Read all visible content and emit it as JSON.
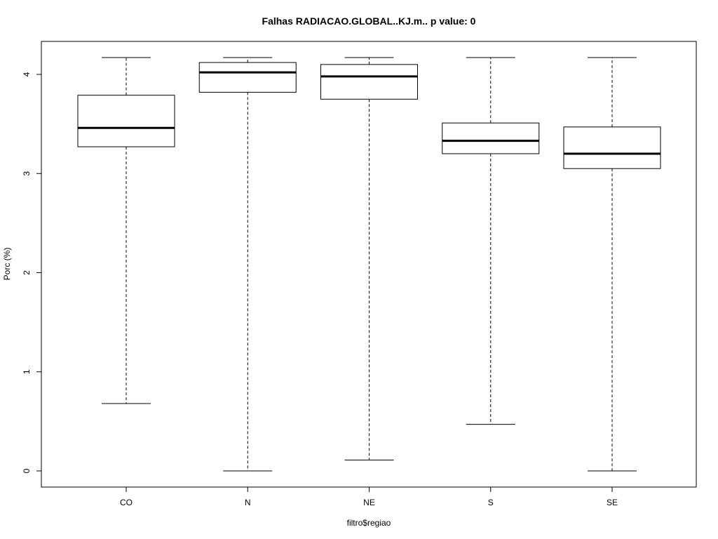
{
  "chart_data": {
    "type": "boxplot",
    "title": "Falhas RADIACAO.GLOBAL..KJ.m.. p value: 0",
    "xlabel": "filtro$regiao",
    "ylabel": "Porc (%)",
    "categories": [
      "CO",
      "N",
      "NE",
      "S",
      "SE"
    ],
    "yticks": [
      0,
      1,
      2,
      3,
      4
    ],
    "ylim": [
      -0.16,
      4.34
    ],
    "grid": false,
    "boxes": [
      {
        "category": "CO",
        "whisker_low": 0.68,
        "q1": 3.27,
        "median": 3.46,
        "q3": 3.79,
        "whisker_high": 4.17
      },
      {
        "category": "N",
        "whisker_low": 0.0,
        "q1": 3.82,
        "median": 4.02,
        "q3": 4.12,
        "whisker_high": 4.17
      },
      {
        "category": "NE",
        "whisker_low": 0.11,
        "q1": 3.75,
        "median": 3.98,
        "q3": 4.1,
        "whisker_high": 4.17
      },
      {
        "category": "S",
        "whisker_low": 0.47,
        "q1": 3.2,
        "median": 3.33,
        "q3": 3.51,
        "whisker_high": 4.17
      },
      {
        "category": "SE",
        "whisker_low": 0.0,
        "q1": 3.05,
        "median": 3.2,
        "q3": 3.47,
        "whisker_high": 4.17
      }
    ]
  }
}
